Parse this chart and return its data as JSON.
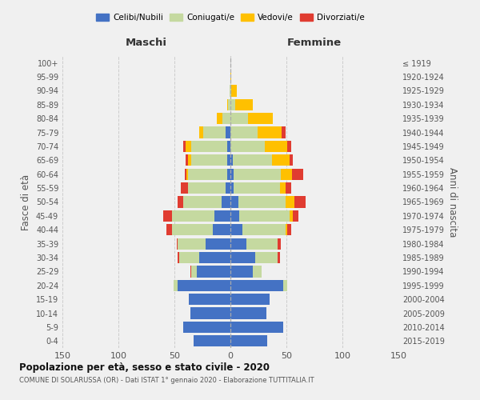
{
  "age_groups": [
    "0-4",
    "5-9",
    "10-14",
    "15-19",
    "20-24",
    "25-29",
    "30-34",
    "35-39",
    "40-44",
    "45-49",
    "50-54",
    "55-59",
    "60-64",
    "65-69",
    "70-74",
    "75-79",
    "80-84",
    "85-89",
    "90-94",
    "95-99",
    "100+"
  ],
  "birth_years": [
    "2015-2019",
    "2010-2014",
    "2005-2009",
    "2000-2004",
    "1995-1999",
    "1990-1994",
    "1985-1989",
    "1980-1984",
    "1975-1979",
    "1970-1974",
    "1965-1969",
    "1960-1964",
    "1955-1959",
    "1950-1954",
    "1945-1949",
    "1940-1944",
    "1935-1939",
    "1930-1934",
    "1925-1929",
    "1920-1924",
    "≤ 1919"
  ],
  "maschi": {
    "celibi": [
      33,
      42,
      36,
      37,
      47,
      30,
      28,
      22,
      16,
      14,
      8,
      4,
      3,
      3,
      3,
      4,
      0,
      0,
      0,
      0,
      0
    ],
    "coniugati": [
      0,
      0,
      0,
      0,
      4,
      5,
      18,
      25,
      36,
      38,
      34,
      34,
      35,
      32,
      32,
      20,
      7,
      2,
      1,
      0,
      0
    ],
    "vedovi": [
      0,
      0,
      0,
      0,
      0,
      0,
      0,
      0,
      0,
      0,
      0,
      0,
      1,
      3,
      5,
      4,
      5,
      1,
      0,
      0,
      0
    ],
    "divorziati": [
      0,
      0,
      0,
      0,
      0,
      1,
      1,
      1,
      5,
      8,
      5,
      6,
      2,
      2,
      2,
      0,
      0,
      0,
      0,
      0,
      0
    ]
  },
  "femmine": {
    "nubili": [
      33,
      47,
      32,
      35,
      47,
      20,
      22,
      14,
      11,
      8,
      7,
      3,
      3,
      2,
      0,
      0,
      0,
      0,
      0,
      0,
      0
    ],
    "coniugate": [
      0,
      0,
      0,
      0,
      4,
      8,
      20,
      28,
      38,
      45,
      42,
      41,
      42,
      35,
      31,
      24,
      16,
      4,
      1,
      0,
      0
    ],
    "vedove": [
      0,
      0,
      0,
      0,
      0,
      0,
      0,
      0,
      2,
      3,
      8,
      5,
      10,
      16,
      20,
      22,
      22,
      16,
      5,
      1,
      0
    ],
    "divorziate": [
      0,
      0,
      0,
      0,
      0,
      0,
      2,
      3,
      3,
      5,
      10,
      5,
      10,
      3,
      3,
      3,
      0,
      0,
      0,
      0,
      0
    ]
  },
  "colors": {
    "celibi": "#4472c4",
    "coniugati": "#c5d9a0",
    "vedovi": "#ffc000",
    "divorziati": "#e03c31"
  },
  "legend_labels": [
    "Celibi/Nubili",
    "Coniugati/e",
    "Vedovi/e",
    "Divorziati/e"
  ],
  "title": "Popolazione per età, sesso e stato civile - 2020",
  "subtitle": "COMUNE DI SOLARUSSA (OR) - Dati ISTAT 1° gennaio 2020 - Elaborazione TUTTITALIA.IT",
  "xlabel_left": "Maschi",
  "xlabel_right": "Femmine",
  "ylabel_left": "Fasce di età",
  "ylabel_right": "Anni di nascita",
  "xlim": 150,
  "background_color": "#f0f0f0"
}
